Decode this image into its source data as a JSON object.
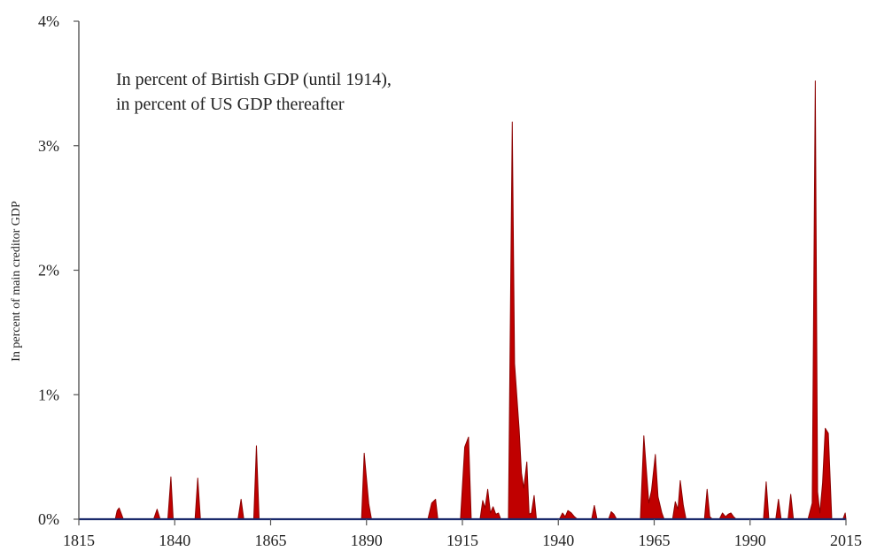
{
  "chart_data": {
    "type": "area",
    "title": "",
    "annotation_lines": [
      "In percent of Birtish GDP (until 1914),",
      "in percent of US GDP thereafter"
    ],
    "ylabel": "In percent of main creditor GDP",
    "xlabel": "",
    "xlim": [
      1815,
      2015
    ],
    "ylim": [
      0,
      4
    ],
    "x_ticks": [
      1815,
      1840,
      1865,
      1890,
      1915,
      1940,
      1965,
      1990,
      2015
    ],
    "y_ticks": [
      0,
      1,
      2,
      3,
      4
    ],
    "y_tick_labels": [
      "0%",
      "1%",
      "2%",
      "3%",
      "4%"
    ],
    "fill_color": "#c00000",
    "outline_color": "#8b0000",
    "baseline_color": "#1a2a6c",
    "grid": false,
    "series": [
      {
        "points": [
          [
            1815,
            0
          ],
          [
            1824.5,
            0
          ],
          [
            1825,
            0.07
          ],
          [
            1825.5,
            0.09
          ],
          [
            1826,
            0.05
          ],
          [
            1826.6,
            0
          ],
          [
            1834.5,
            0
          ],
          [
            1835.4,
            0.08
          ],
          [
            1836.2,
            0
          ],
          [
            1838.2,
            0
          ],
          [
            1839,
            0.34
          ],
          [
            1839.6,
            0
          ],
          [
            1845.3,
            0
          ],
          [
            1846,
            0.33
          ],
          [
            1846.7,
            0
          ],
          [
            1856.5,
            0
          ],
          [
            1857.3,
            0.16
          ],
          [
            1858,
            0
          ],
          [
            1860.6,
            0
          ],
          [
            1861.3,
            0.59
          ],
          [
            1862,
            0
          ],
          [
            1888.7,
            0
          ],
          [
            1889.4,
            0.53
          ],
          [
            1890.6,
            0.12
          ],
          [
            1891.3,
            0
          ],
          [
            1906,
            0
          ],
          [
            1907,
            0.13
          ],
          [
            1908,
            0.16
          ],
          [
            1908.6,
            0
          ],
          [
            1914.5,
            0
          ],
          [
            1915.6,
            0.58
          ],
          [
            1916.6,
            0.66
          ],
          [
            1917.3,
            0
          ],
          [
            1919.6,
            0
          ],
          [
            1920.3,
            0.15
          ],
          [
            1920.9,
            0.09
          ],
          [
            1921.6,
            0.24
          ],
          [
            1922.3,
            0.05
          ],
          [
            1923,
            0.1
          ],
          [
            1923.7,
            0.04
          ],
          [
            1924.4,
            0.05
          ],
          [
            1925,
            0
          ],
          [
            1927,
            0
          ],
          [
            1928,
            3.19
          ],
          [
            1928.6,
            1.25
          ],
          [
            1929.8,
            0.72
          ],
          [
            1930.4,
            0.37
          ],
          [
            1931,
            0.25
          ],
          [
            1931.8,
            0.46
          ],
          [
            1932.4,
            0.04
          ],
          [
            1933,
            0.05
          ],
          [
            1933.7,
            0.19
          ],
          [
            1934.3,
            0
          ],
          [
            1940.3,
            0
          ],
          [
            1941.1,
            0.05
          ],
          [
            1941.8,
            0.02
          ],
          [
            1942.5,
            0.07
          ],
          [
            1943.4,
            0.05
          ],
          [
            1944.2,
            0.02
          ],
          [
            1945,
            0
          ],
          [
            1948.7,
            0
          ],
          [
            1949.4,
            0.11
          ],
          [
            1950.1,
            0
          ],
          [
            1953.1,
            0
          ],
          [
            1953.8,
            0.06
          ],
          [
            1954.5,
            0.04
          ],
          [
            1955.2,
            0
          ],
          [
            1961.4,
            0
          ],
          [
            1962.3,
            0.67
          ],
          [
            1963.6,
            0.13
          ],
          [
            1964.3,
            0.23
          ],
          [
            1965.3,
            0.52
          ],
          [
            1966,
            0.18
          ],
          [
            1967,
            0.05
          ],
          [
            1967.6,
            0
          ],
          [
            1969.8,
            0
          ],
          [
            1970.5,
            0.14
          ],
          [
            1971.2,
            0.08
          ],
          [
            1971.8,
            0.31
          ],
          [
            1972.6,
            0.11
          ],
          [
            1973.3,
            0
          ],
          [
            1978.1,
            0
          ],
          [
            1978.8,
            0.24
          ],
          [
            1979.5,
            0.02
          ],
          [
            1980.2,
            0
          ],
          [
            1982,
            0
          ],
          [
            1982.8,
            0.05
          ],
          [
            1983.6,
            0.02
          ],
          [
            1984.3,
            0.04
          ],
          [
            1985,
            0.05
          ],
          [
            1985.7,
            0.02
          ],
          [
            1986.4,
            0
          ],
          [
            1993.5,
            0
          ],
          [
            1994.2,
            0.3
          ],
          [
            1994.9,
            0
          ],
          [
            1996.7,
            0
          ],
          [
            1997.4,
            0.16
          ],
          [
            1998.1,
            0
          ],
          [
            1999.9,
            0
          ],
          [
            2000.6,
            0.2
          ],
          [
            2001.3,
            0
          ],
          [
            2005.1,
            0
          ],
          [
            2006.2,
            0.13
          ],
          [
            2007,
            3.52
          ],
          [
            2007.6,
            0.22
          ],
          [
            2008.2,
            0.05
          ],
          [
            2008.9,
            0.29
          ],
          [
            2009.6,
            0.73
          ],
          [
            2010.4,
            0.69
          ],
          [
            2011.3,
            0
          ],
          [
            2014.2,
            0
          ],
          [
            2014.8,
            0.05
          ],
          [
            2015,
            0
          ]
        ]
      }
    ]
  }
}
